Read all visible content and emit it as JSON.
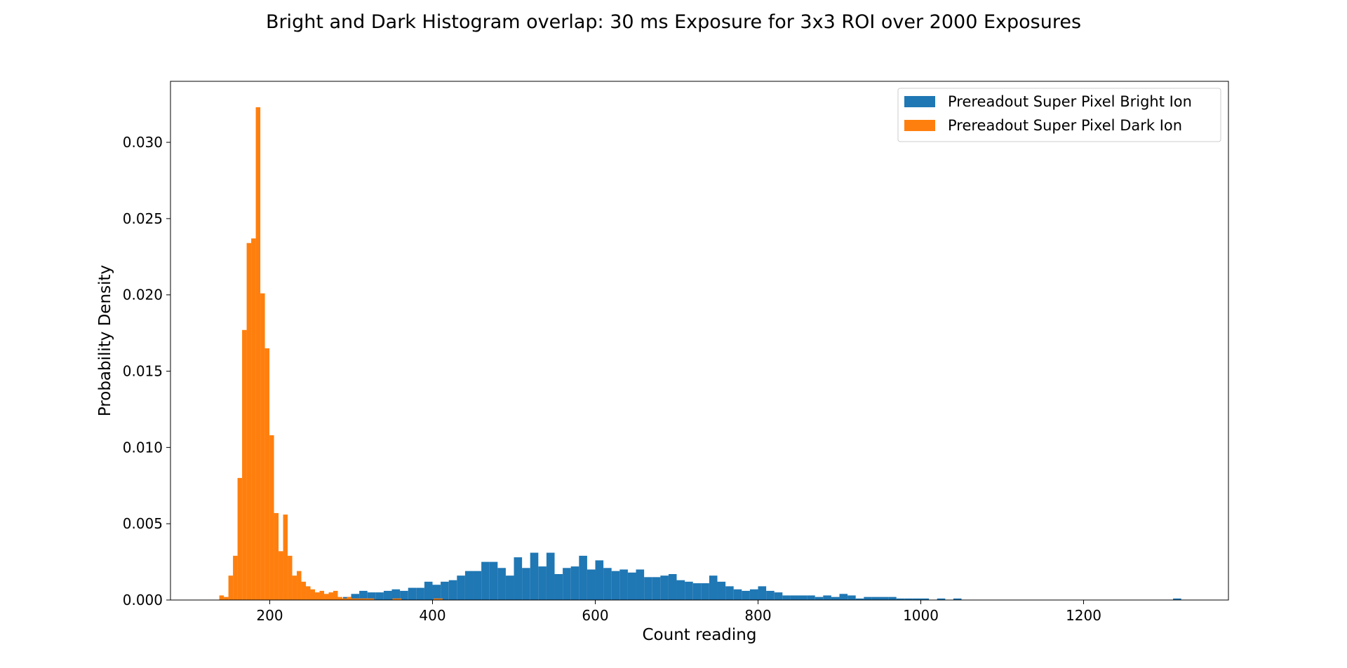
{
  "chart_data": {
    "type": "bar",
    "title": "Bright and Dark Histogram overlap: 30 ms Exposure for 3x3 ROI over 2000 Exposures",
    "xlabel": "Count reading",
    "ylabel": "Probability Density",
    "xlim": [
      78,
      1378
    ],
    "ylim": [
      0,
      0.034
    ],
    "xticks": [
      200,
      400,
      600,
      800,
      1000,
      1200
    ],
    "xtick_labels": [
      "200",
      "400",
      "600",
      "800",
      "1000",
      "1200"
    ],
    "yticks": [
      0,
      0.005,
      0.01,
      0.015,
      0.02,
      0.025,
      0.03
    ],
    "ytick_labels": [
      "0.000",
      "0.005",
      "0.010",
      "0.015",
      "0.020",
      "0.025",
      "0.030"
    ],
    "grid": false,
    "legend_position": "top-right",
    "series": [
      {
        "name": "Prereadout Super Pixel Bright Ion",
        "color": "#1f77b4",
        "bin_width": 10,
        "bin_starts": [
          290,
          300,
          310,
          320,
          330,
          340,
          350,
          360,
          370,
          380,
          390,
          400,
          410,
          420,
          430,
          440,
          450,
          460,
          470,
          480,
          490,
          500,
          510,
          520,
          530,
          540,
          550,
          560,
          570,
          580,
          590,
          600,
          610,
          620,
          630,
          640,
          650,
          660,
          670,
          680,
          690,
          700,
          710,
          720,
          730,
          740,
          750,
          760,
          770,
          780,
          790,
          800,
          810,
          820,
          830,
          840,
          850,
          860,
          870,
          880,
          890,
          900,
          910,
          920,
          930,
          940,
          950,
          960,
          970,
          980,
          990,
          1000,
          1010,
          1020,
          1030,
          1040,
          1050,
          1060,
          1070,
          1080,
          1090,
          1100,
          1110,
          1120,
          1130,
          1140,
          1150,
          1160,
          1170,
          1180,
          1190,
          1200,
          1210,
          1220,
          1230,
          1240,
          1250,
          1260,
          1270,
          1280,
          1290,
          1300,
          1310
        ],
        "values": [
          0.0002,
          0.0004,
          0.0006,
          0.0005,
          0.0005,
          0.0006,
          0.0007,
          0.0006,
          0.0008,
          0.0008,
          0.0012,
          0.001,
          0.0012,
          0.0013,
          0.0016,
          0.0019,
          0.0019,
          0.0025,
          0.0025,
          0.0021,
          0.0016,
          0.0028,
          0.0021,
          0.0031,
          0.0022,
          0.0031,
          0.0017,
          0.0021,
          0.0022,
          0.0029,
          0.002,
          0.0026,
          0.0021,
          0.0019,
          0.002,
          0.0018,
          0.002,
          0.0015,
          0.0015,
          0.0016,
          0.0017,
          0.0013,
          0.0012,
          0.0011,
          0.0011,
          0.0016,
          0.0012,
          0.0009,
          0.0007,
          0.0006,
          0.0007,
          0.0009,
          0.0006,
          0.0005,
          0.0003,
          0.0003,
          0.0003,
          0.0003,
          0.0002,
          0.0003,
          0.0002,
          0.0004,
          0.0003,
          0.0001,
          0.0002,
          0.0002,
          0.0002,
          0.0002,
          0.0001,
          0.0001,
          0.0001,
          0.0001,
          0,
          0.0001,
          0,
          0.0001,
          0,
          0,
          0,
          0,
          0,
          0,
          0,
          0,
          0,
          0,
          0,
          0,
          0,
          0,
          0,
          0,
          0,
          0,
          0,
          0,
          0,
          0,
          0,
          0,
          0,
          0,
          0.0001
        ]
      },
      {
        "name": "Prereadout Super Pixel Dark Ion",
        "color": "#ff7f0e",
        "bin_width": 5.6,
        "bin_starts": [
          138,
          143.6,
          149.2,
          154.8,
          160.4,
          166,
          171.6,
          177.2,
          182.8,
          188.4,
          194,
          199.6,
          205.2,
          210.8,
          216.4,
          222,
          227.6,
          233.2,
          238.8,
          244.4,
          250,
          255.6,
          261.2,
          266.8,
          272.4,
          278,
          283.6,
          289.2,
          294.8,
          300.4,
          306,
          311.6,
          317.2,
          322.8,
          328.4,
          334,
          339.6,
          345.2,
          350.8,
          356.4,
          362,
          367.6,
          373.2,
          378.8,
          384.4,
          390,
          395.6,
          401.2,
          406.8
        ],
        "values": [
          0.0003,
          0.0002,
          0.0016,
          0.0029,
          0.008,
          0.0177,
          0.0234,
          0.0237,
          0.0323,
          0.0201,
          0.0165,
          0.0108,
          0.0057,
          0.0032,
          0.0056,
          0.0029,
          0.0016,
          0.0019,
          0.0012,
          0.0009,
          0.0007,
          0.0005,
          0.0006,
          0.0004,
          0.0005,
          0.0006,
          0.0002,
          0.0001,
          0.0002,
          0.0001,
          0.0001,
          0.0001,
          0.0001,
          0.0001,
          0,
          0,
          0,
          0,
          0.0001,
          0.0001,
          0,
          0,
          0,
          0,
          0,
          0,
          0,
          0.0001,
          0.0001
        ]
      }
    ]
  }
}
